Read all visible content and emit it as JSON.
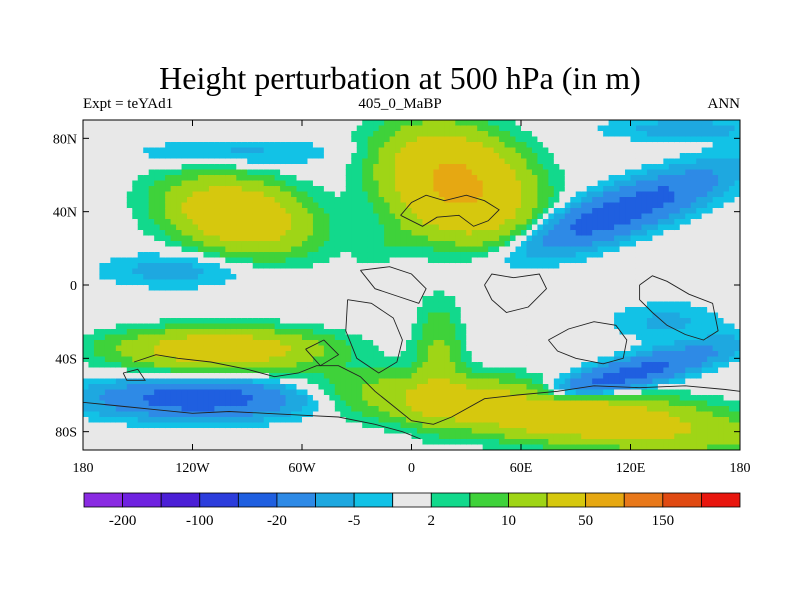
{
  "chart_data": {
    "type": "heatmap",
    "title": "Height perturbation at 500 hPa (in m)",
    "left_label": "Expt = teYAd1",
    "center_label": "405_0_MaBP",
    "right_label": "ANN",
    "x_ticks": [
      {
        "value": -180,
        "label": "180"
      },
      {
        "value": -120,
        "label": "120W"
      },
      {
        "value": -60,
        "label": "60W"
      },
      {
        "value": 0,
        "label": "0"
      },
      {
        "value": 60,
        "label": "60E"
      },
      {
        "value": 120,
        "label": "120E"
      },
      {
        "value": 180,
        "label": "180"
      }
    ],
    "y_ticks": [
      {
        "value": 80,
        "label": "80N"
      },
      {
        "value": 40,
        "label": "40N"
      },
      {
        "value": 0,
        "label": "0"
      },
      {
        "value": -40,
        "label": "40S"
      },
      {
        "value": -80,
        "label": "80S"
      }
    ],
    "xlim": [
      -180,
      180
    ],
    "ylim": [
      -90,
      90
    ],
    "colorbar": {
      "colors": [
        "#8a2be2",
        "#6f22e0",
        "#4b1fd6",
        "#2c3ddc",
        "#1f5fe0",
        "#2e8ae6",
        "#1ea8e0",
        "#12c2e6",
        "#e8e8e8",
        "#12d98c",
        "#3fd23a",
        "#9fd516",
        "#d6c80e",
        "#e6a812",
        "#e8781a",
        "#e04a12",
        "#e8160e"
      ],
      "labels": [
        {
          "after_bin": 1,
          "text": "-200"
        },
        {
          "after_bin": 3,
          "text": "-100"
        },
        {
          "after_bin": 5,
          "text": "-20"
        },
        {
          "after_bin": 7,
          "text": "-5"
        },
        {
          "after_bin": 9,
          "text": "2"
        },
        {
          "after_bin": 11,
          "text": "10"
        },
        {
          "after_bin": 13,
          "text": "50"
        },
        {
          "after_bin": 15,
          "text": "150"
        }
      ]
    },
    "field_blobs": [
      {
        "lon": 25,
        "lat": 55,
        "rlon": 35,
        "rlat": 24,
        "amp": 60,
        "rot": -20
      },
      {
        "lon": -95,
        "lat": 38,
        "rlon": 35,
        "rlat": 17,
        "amp": 42,
        "rot": -10
      },
      {
        "lon": -105,
        "lat": -35,
        "rlon": 50,
        "rlat": 10,
        "amp": 35,
        "rot": 0
      },
      {
        "lon": 75,
        "lat": -70,
        "rlon": 95,
        "rlat": 13,
        "amp": 40,
        "rot": -6
      },
      {
        "lon": -115,
        "lat": -62,
        "rlon": 55,
        "rlat": 10,
        "amp": -28,
        "rot": 0
      },
      {
        "lon": 115,
        "lat": 40,
        "rlon": 55,
        "rlat": 12,
        "amp": -28,
        "rot": 20
      },
      {
        "lon": -95,
        "lat": 72,
        "rlon": 55,
        "rlat": 7,
        "amp": -6,
        "rot": 0
      },
      {
        "lon": -130,
        "lat": 8,
        "rlon": 38,
        "rlat": 9,
        "amp": -7,
        "rot": 0
      },
      {
        "lon": 115,
        "lat": -50,
        "rlon": 55,
        "rlat": 8,
        "amp": -26,
        "rot": 15
      },
      {
        "lon": 140,
        "lat": -20,
        "rlon": 28,
        "rlat": 10,
        "amp": -6,
        "rot": 0
      },
      {
        "lon": 15,
        "lat": -42,
        "rlon": 12,
        "rlat": 30,
        "amp": 12,
        "rot": 0
      },
      {
        "lon": -10,
        "lat": 25,
        "rlon": 22,
        "rlat": 10,
        "amp": 4,
        "rot": 30
      },
      {
        "lon": 150,
        "lat": 85,
        "rlon": 40,
        "rlat": 6,
        "amp": -8,
        "rot": 0
      }
    ],
    "coast_outlines": [
      [
        [
          -152,
          -42
        ],
        [
          -140,
          -38
        ],
        [
          -128,
          -40
        ],
        [
          -110,
          -42
        ],
        [
          -90,
          -46
        ],
        [
          -75,
          -50
        ],
        [
          -62,
          -48
        ],
        [
          -52,
          -44
        ],
        [
          -40,
          -44
        ],
        [
          -28,
          -50
        ],
        [
          -20,
          -58
        ],
        [
          -10,
          -66
        ],
        [
          0,
          -74
        ],
        [
          12,
          -76
        ],
        [
          22,
          -72
        ],
        [
          40,
          -62
        ],
        [
          58,
          -60
        ],
        [
          80,
          -58
        ],
        [
          100,
          -55
        ],
        [
          125,
          -56
        ],
        [
          150,
          -55
        ],
        [
          172,
          -57
        ],
        [
          180,
          -58
        ]
      ],
      [
        [
          -180,
          -64
        ],
        [
          -160,
          -66
        ],
        [
          -140,
          -68
        ],
        [
          -120,
          -70
        ],
        [
          -100,
          -69
        ],
        [
          -80,
          -70
        ],
        [
          -60,
          -71
        ],
        [
          -40,
          -72
        ],
        [
          -20,
          -76
        ],
        [
          -5,
          -80
        ],
        [
          5,
          -84
        ]
      ],
      [
        [
          -6,
          38
        ],
        [
          0,
          45
        ],
        [
          8,
          49
        ],
        [
          18,
          46
        ],
        [
          30,
          49
        ],
        [
          40,
          46
        ],
        [
          48,
          41
        ],
        [
          42,
          35
        ],
        [
          34,
          32
        ],
        [
          26,
          38
        ],
        [
          14,
          37
        ],
        [
          6,
          32
        ],
        [
          0,
          35
        ],
        [
          -6,
          38
        ]
      ],
      [
        [
          40,
          0
        ],
        [
          44,
          -8
        ],
        [
          52,
          -15
        ],
        [
          64,
          -12
        ],
        [
          74,
          -2
        ],
        [
          70,
          6
        ],
        [
          56,
          4
        ],
        [
          44,
          6
        ],
        [
          40,
          0
        ]
      ],
      [
        [
          -35,
          -8
        ],
        [
          -22,
          -10
        ],
        [
          -10,
          -18
        ],
        [
          -5,
          -30
        ],
        [
          -8,
          -42
        ],
        [
          -18,
          -48
        ],
        [
          -30,
          -40
        ],
        [
          -36,
          -25
        ],
        [
          -35,
          -8
        ]
      ],
      [
        [
          -28,
          8
        ],
        [
          -12,
          10
        ],
        [
          0,
          6
        ],
        [
          8,
          -2
        ],
        [
          4,
          -10
        ],
        [
          -8,
          -6
        ],
        [
          -20,
          -2
        ],
        [
          -28,
          8
        ]
      ],
      [
        [
          75,
          -30
        ],
        [
          86,
          -24
        ],
        [
          100,
          -20
        ],
        [
          112,
          -22
        ],
        [
          118,
          -30
        ],
        [
          116,
          -40
        ],
        [
          105,
          -43
        ],
        [
          90,
          -40
        ],
        [
          80,
          -36
        ],
        [
          75,
          -30
        ]
      ],
      [
        [
          125,
          0
        ],
        [
          132,
          5
        ],
        [
          140,
          2
        ],
        [
          152,
          -5
        ],
        [
          165,
          -10
        ],
        [
          168,
          -25
        ],
        [
          160,
          -30
        ],
        [
          150,
          -27
        ],
        [
          140,
          -22
        ],
        [
          132,
          -15
        ],
        [
          125,
          -8
        ],
        [
          125,
          0
        ]
      ],
      [
        [
          -58,
          -35
        ],
        [
          -48,
          -30
        ],
        [
          -40,
          -38
        ],
        [
          -50,
          -44
        ],
        [
          -58,
          -35
        ]
      ],
      [
        [
          -158,
          -48
        ],
        [
          -150,
          -46
        ],
        [
          -146,
          -52
        ],
        [
          -156,
          -52
        ],
        [
          -158,
          -48
        ]
      ]
    ]
  }
}
